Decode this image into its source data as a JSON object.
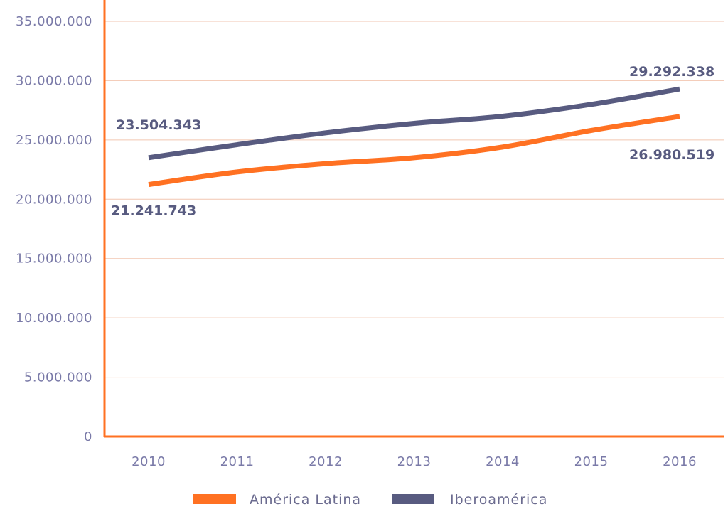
{
  "chart_data": {
    "type": "line",
    "title": "",
    "xlabel": "",
    "ylabel": "",
    "x": [
      "2010",
      "2011",
      "2012",
      "2013",
      "2014",
      "2015",
      "2016"
    ],
    "ylim": [
      0,
      35000000
    ],
    "y_ticks": [
      0,
      5000000,
      10000000,
      15000000,
      20000000,
      25000000,
      30000000,
      35000000
    ],
    "y_tick_labels": [
      "0",
      "5.000.000",
      "10.000.000",
      "15.000.000",
      "20.000.000",
      "25.000.000",
      "30.000.000",
      "35.000.000"
    ],
    "grid": true,
    "legend_position": "bottom",
    "series": [
      {
        "name": "América Latina",
        "color": "#ff7122",
        "values": [
          21241743,
          22300000,
          23000000,
          23500000,
          24400000,
          25800000,
          26980519
        ],
        "labels": [
          {
            "index": 0,
            "text": "21.241.743",
            "placement": "below"
          },
          {
            "index": 6,
            "text": "26.980.519",
            "placement": "below"
          }
        ]
      },
      {
        "name": "Iberoamérica",
        "color": "#585b80",
        "values": [
          23504343,
          24600000,
          25600000,
          26400000,
          27000000,
          28000000,
          29292338
        ],
        "labels": [
          {
            "index": 0,
            "text": "23.504.343",
            "placement": "above"
          },
          {
            "index": 6,
            "text": "29.292.338",
            "placement": "above"
          }
        ]
      }
    ],
    "axis_color": "#ff7122",
    "grid_color": "#f2c6b0"
  }
}
